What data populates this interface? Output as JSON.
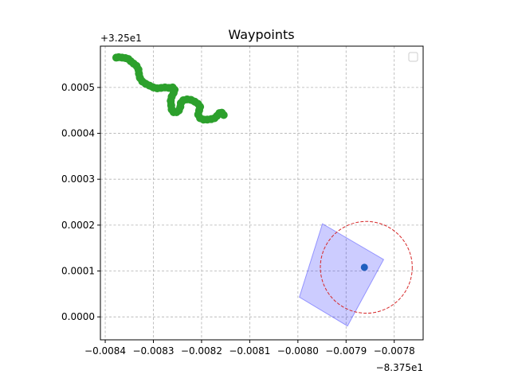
{
  "chart_data": {
    "type": "scatter",
    "title": "Waypoints",
    "xlabel": "",
    "ylabel": "",
    "x_offset_label": "−8.375e1",
    "y_offset_label": "+3.25e1",
    "xlim": [
      -0.00841,
      -0.00774
    ],
    "ylim": [
      -5e-05,
      0.00059
    ],
    "x_ticks": [
      -0.0084,
      -0.0083,
      -0.0082,
      -0.0081,
      -0.008,
      -0.0079,
      -0.0078
    ],
    "x_tick_labels": [
      "−0.0084",
      "−0.0083",
      "−0.0082",
      "−0.0081",
      "−0.0080",
      "−0.0079",
      "−0.0078"
    ],
    "y_ticks": [
      0.0,
      0.0001,
      0.0002,
      0.0003,
      0.0004,
      0.0005
    ],
    "y_tick_labels": [
      "0.0000",
      "0.0001",
      "0.0002",
      "0.0003",
      "0.0004",
      "0.0005"
    ],
    "grid": true,
    "legend": {
      "location": "upper-right",
      "entries": []
    },
    "series": [
      {
        "kind": "path",
        "color": "#2ca02c",
        "points": [
          [
            -0.008377,
            0.000565
          ],
          [
            -0.008372,
            0.000566
          ],
          [
            -0.008365,
            0.000565
          ],
          [
            -0.008358,
            0.000564
          ],
          [
            -0.008352,
            0.000562
          ],
          [
            -0.008347,
            0.000557
          ],
          [
            -0.008341,
            0.000552
          ],
          [
            -0.008335,
            0.000547
          ],
          [
            -0.008331,
            0.000539
          ],
          [
            -0.00833,
            0.00053
          ],
          [
            -0.008328,
            0.000521
          ],
          [
            -0.008323,
            0.000513
          ],
          [
            -0.008316,
            0.000508
          ],
          [
            -0.008308,
            0.000504
          ],
          [
            -0.0083,
            0.0005
          ],
          [
            -0.008292,
            0.000498
          ],
          [
            -0.008284,
            0.000499
          ],
          [
            -0.008276,
            0.0005
          ],
          [
            -0.008268,
            0.000499
          ],
          [
            -0.00826,
            0.0005
          ],
          [
            -0.008256,
            0.000495
          ],
          [
            -0.008258,
            0.000488
          ],
          [
            -0.008262,
            0.00048
          ],
          [
            -0.008264,
            0.000471
          ],
          [
            -0.008263,
            0.000461
          ],
          [
            -0.008262,
            0.000452
          ],
          [
            -0.008258,
            0.000446
          ],
          [
            -0.008252,
            0.000446
          ],
          [
            -0.008247,
            0.00045
          ],
          [
            -0.008244,
            0.000458
          ],
          [
            -0.008243,
            0.000466
          ],
          [
            -0.008238,
            0.000472
          ],
          [
            -0.00823,
            0.000474
          ],
          [
            -0.008222,
            0.000473
          ],
          [
            -0.008214,
            0.000469
          ],
          [
            -0.008207,
            0.000464
          ],
          [
            -0.008203,
            0.000458
          ],
          [
            -0.008205,
            0.00045
          ],
          [
            -0.008207,
            0.000441
          ],
          [
            -0.008203,
            0.000433
          ],
          [
            -0.008196,
            0.00043
          ],
          [
            -0.008188,
            0.00043
          ],
          [
            -0.00818,
            0.000431
          ],
          [
            -0.008173,
            0.000433
          ],
          [
            -0.008168,
            0.000438
          ],
          [
            -0.008163,
            0.000444
          ],
          [
            -0.008158,
            0.000445
          ],
          [
            -0.008154,
            0.00044
          ]
        ]
      },
      {
        "kind": "polygon",
        "color": "#0000ff",
        "points": [
          [
            -0.007949,
            0.000203
          ],
          [
            -0.007822,
            0.000125
          ],
          [
            -0.007897,
            -2e-05
          ],
          [
            -0.007997,
            4.3e-05
          ]
        ]
      },
      {
        "kind": "circle",
        "color": "#d62728",
        "center": [
          -0.007858,
          0.000108
        ],
        "radius_y": 0.0001
      },
      {
        "kind": "point",
        "color": "#1f5fbf",
        "points": [
          [
            -0.007862,
            0.000108
          ]
        ]
      }
    ]
  }
}
